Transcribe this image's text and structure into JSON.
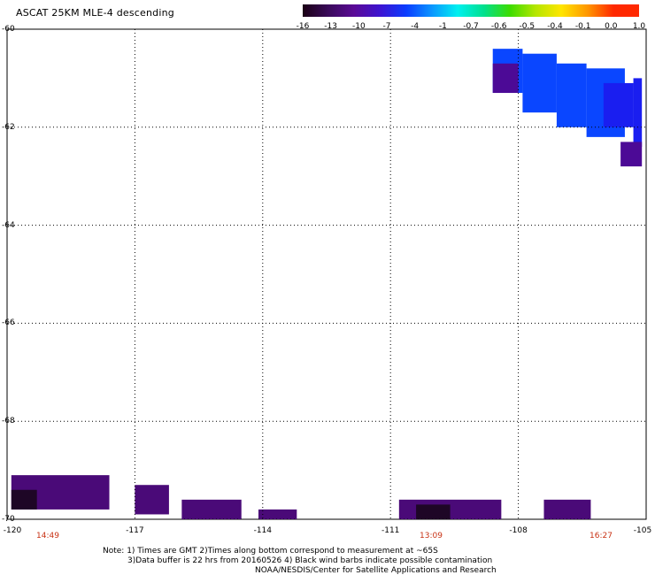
{
  "title": "ASCAT 25KM MLE-4 descending",
  "colorbar": {
    "labels": [
      "-16",
      "-13",
      "-10",
      "-7",
      "-4",
      "-1",
      "-0.7",
      "-0.6",
      "-0.5",
      "-0.4",
      "-0.1",
      "0.0",
      "1.0"
    ],
    "colors": [
      "#1a0014",
      "#3a0a5a",
      "#5a0a96",
      "#3c14d2",
      "#0a3cff",
      "#0a96ff",
      "#00f0f0",
      "#00e08c",
      "#3cdc00",
      "#b4e600",
      "#ffe600",
      "#ff9600",
      "#ff2800"
    ]
  },
  "axes": {
    "x_ticks": [
      -120,
      -117,
      -114,
      -111,
      -108,
      -105
    ],
    "x_tick_labels": [
      "-120",
      "-117",
      "-114",
      "-111",
      "-108",
      "-105"
    ],
    "y_ticks": [
      -60,
      -62,
      -64,
      -66,
      -68,
      -70
    ],
    "y_tick_labels": [
      "-60",
      "-62",
      "-64",
      "-66",
      "-68",
      "-70"
    ],
    "grid": "dotted"
  },
  "times": [
    "14:49",
    "13:09",
    "16:27"
  ],
  "notes": {
    "line1": "Note: 1) Times are GMT 2)Times along bottom correspond to measurement at ~65S",
    "line2": "3)Data buffer is 22 hrs from 20160526 4) Black wind barbs indicate possible contamination",
    "line3": "NOAA/NESDIS/Center for Satellite Applications and Research"
  },
  "map_data": {
    "x_range": [
      -120,
      -105
    ],
    "y_range": [
      -60,
      -70
    ],
    "swaths": [
      {
        "name": "ne-swath-blue",
        "color": "#0a46ff",
        "cells": [
          [
            -108.6,
            -60.4,
            -107.9,
            -61.3
          ],
          [
            -107.9,
            -60.5,
            -107.1,
            -61.7
          ],
          [
            -107.1,
            -60.7,
            -106.4,
            -62.0
          ],
          [
            -106.4,
            -60.8,
            -105.5,
            -62.2
          ]
        ]
      },
      {
        "name": "ne-swath-deep",
        "color": "#1a1ef0",
        "cells": [
          [
            -106.0,
            -61.1,
            -105.3,
            -62.0
          ],
          [
            -105.3,
            -61.0,
            -105.1,
            -62.4
          ]
        ]
      },
      {
        "name": "ne-swath-purple",
        "color": "#4c0a96",
        "cells": [
          [
            -108.6,
            -60.7,
            -108.0,
            -61.3
          ],
          [
            -105.6,
            -62.3,
            -105.1,
            -62.8
          ]
        ]
      },
      {
        "name": "sw-swath",
        "color": "#4a0a78",
        "cells": [
          [
            -119.9,
            -69.1,
            -117.6,
            -69.8
          ],
          [
            -117.0,
            -69.3,
            -116.2,
            -69.9
          ],
          [
            -115.9,
            -69.6,
            -114.5,
            -70.0
          ],
          [
            -114.1,
            -69.8,
            -113.2,
            -70.0
          ]
        ]
      },
      {
        "name": "s-swath",
        "color": "#4a0a78",
        "cells": [
          [
            -110.8,
            -69.6,
            -108.4,
            -70.0
          ],
          [
            -107.4,
            -69.6,
            -106.3,
            -70.0
          ]
        ]
      },
      {
        "name": "dark-core",
        "color": "#1e0626",
        "cells": [
          [
            -119.9,
            -69.4,
            -119.3,
            -69.8
          ],
          [
            -110.4,
            -69.7,
            -109.6,
            -70.0
          ]
        ]
      }
    ]
  }
}
